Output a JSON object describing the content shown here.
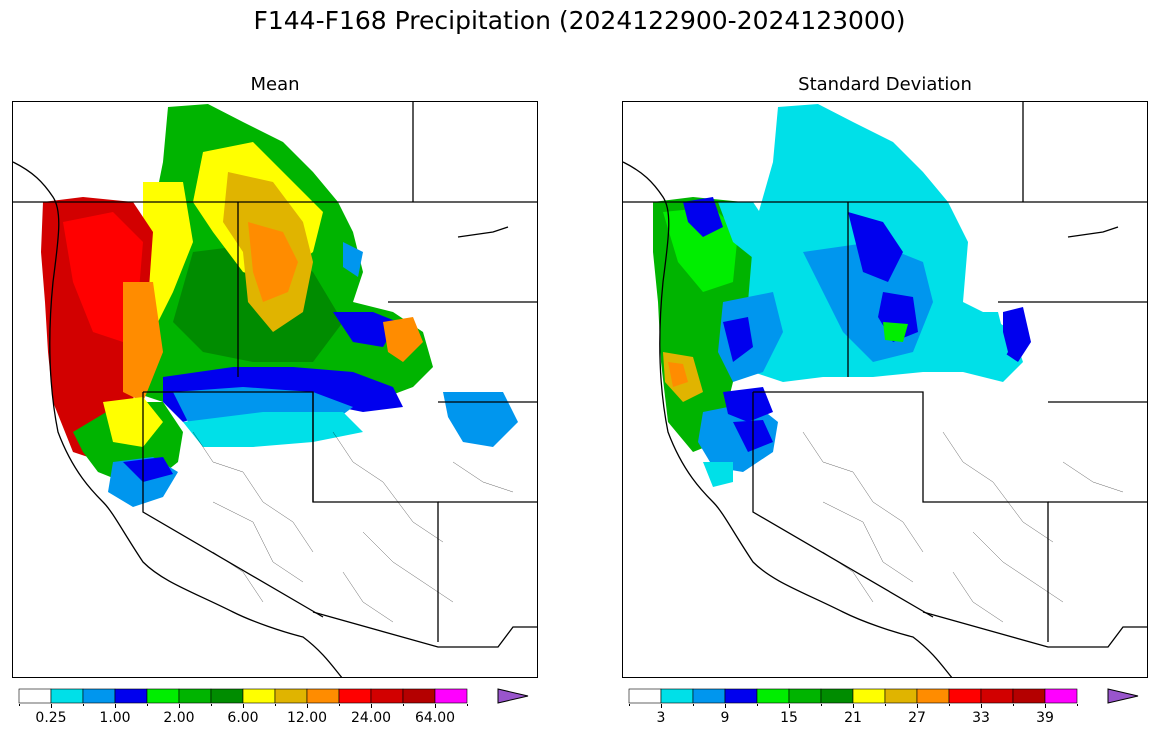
{
  "title": "F144-F168 Precipitation (2024122900-2024123000)",
  "panels": [
    {
      "title": "Mean",
      "colorbar": {
        "colors": [
          "#ffffff",
          "#00e0e8",
          "#0096ee",
          "#0000ee",
          "#00ee00",
          "#00b400",
          "#008c00",
          "#ffff00",
          "#e0b400",
          "#ff8c00",
          "#ff0000",
          "#d20000",
          "#b40000",
          "#ff00ff",
          "#9955cc"
        ],
        "tick_labels": [
          "0.25",
          "1.00",
          "2.00",
          "6.00",
          "12.00",
          "24.00",
          "64.00"
        ]
      }
    },
    {
      "title": "Standard Deviation",
      "colorbar": {
        "colors": [
          "#ffffff",
          "#00e0e8",
          "#0096ee",
          "#0000ee",
          "#00ee00",
          "#00b400",
          "#008c00",
          "#ffff00",
          "#e0b400",
          "#ff8c00",
          "#ff0000",
          "#d20000",
          "#b40000",
          "#ff00ff",
          "#9955cc"
        ],
        "tick_labels": [
          "3",
          "9",
          "15",
          "21",
          "27",
          "33",
          "39"
        ]
      }
    }
  ]
}
